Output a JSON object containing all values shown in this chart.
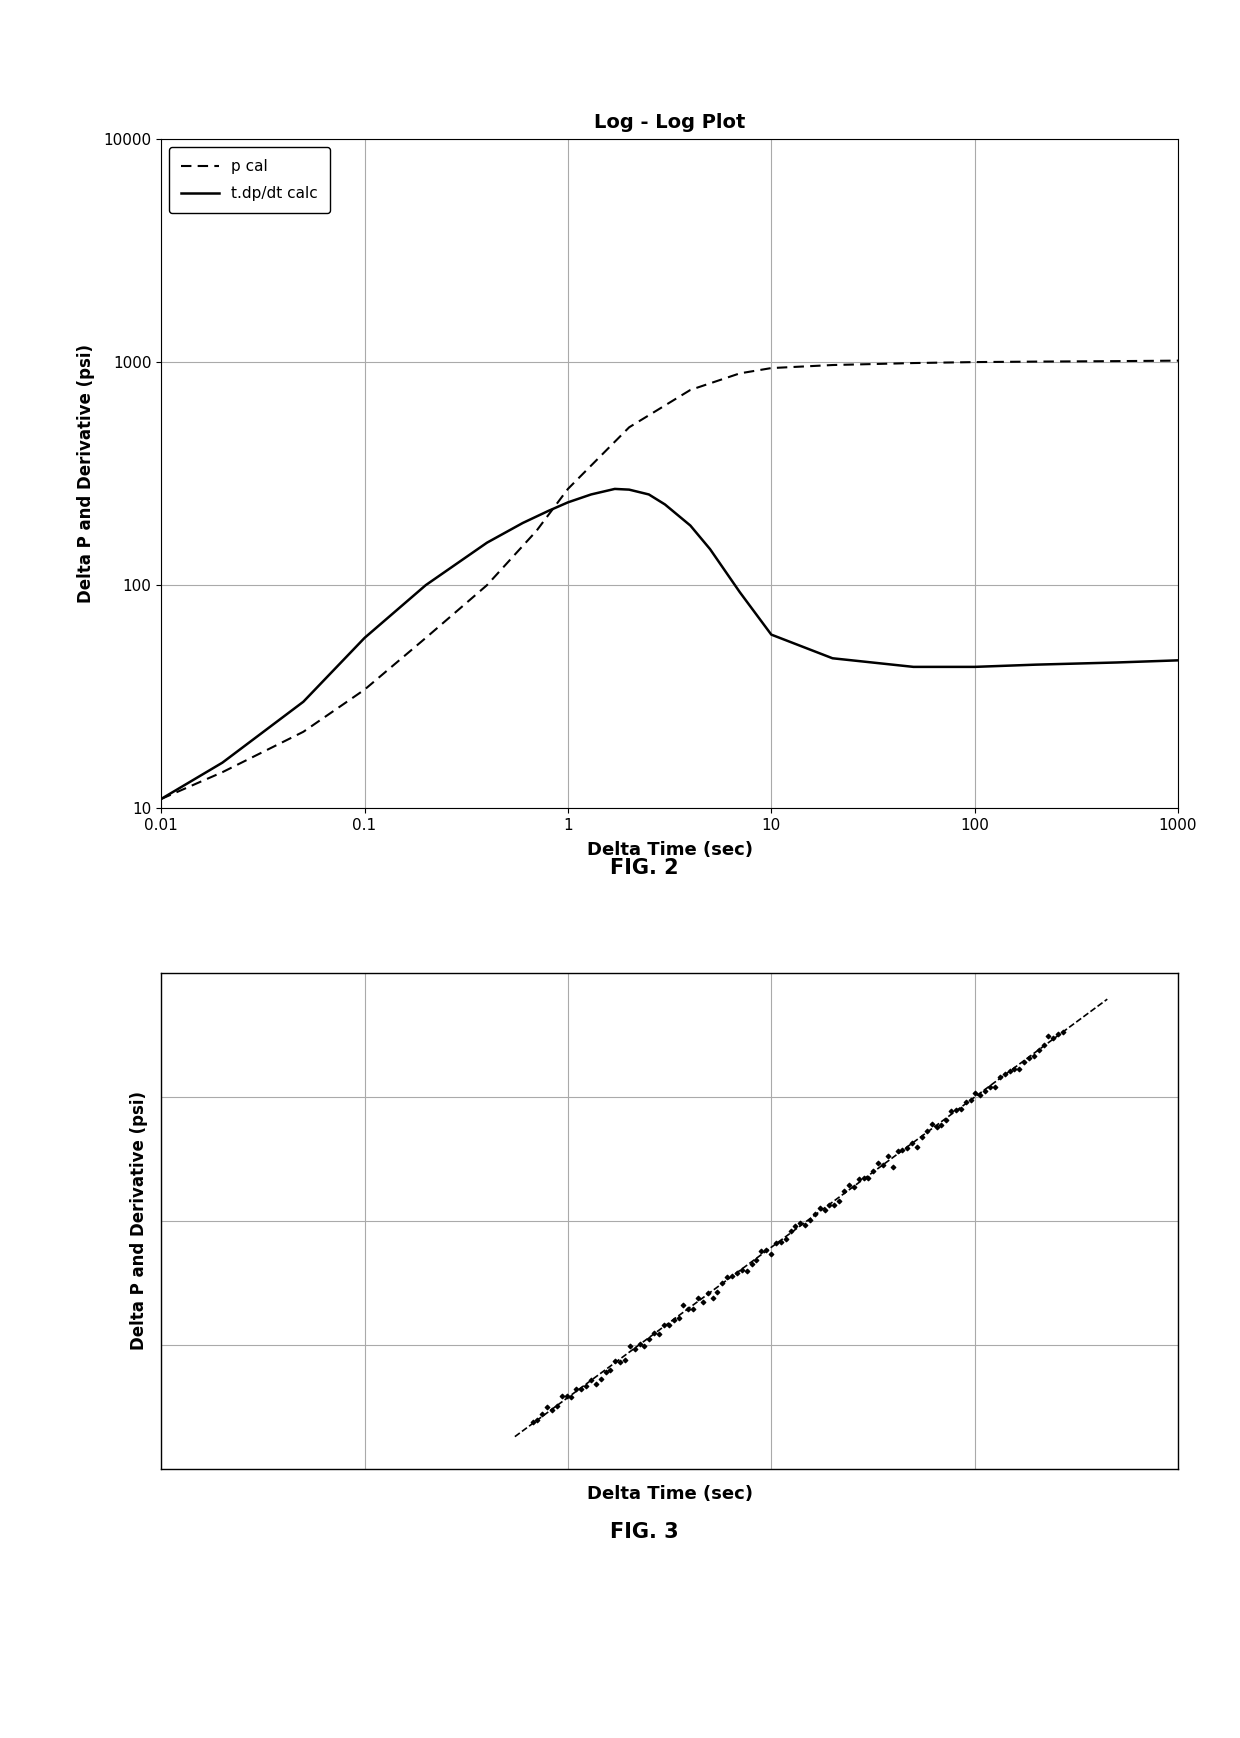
{
  "fig1": {
    "title": "Log - Log Plot",
    "xlabel": "Delta Time (sec)",
    "ylabel": "Delta P and Derivative (psi)",
    "fig_caption": "FIG. 2",
    "xlim": [
      0.01,
      1000
    ],
    "ylim": [
      10,
      10000
    ],
    "xticks": [
      0.01,
      0.1,
      1,
      10,
      100,
      1000
    ],
    "xticklabels": [
      "0.01",
      "0.1",
      "1",
      "10",
      "100",
      "1000"
    ],
    "yticks": [
      10,
      100,
      1000,
      10000
    ],
    "yticklabels": [
      "10",
      "100",
      "1000",
      "10000"
    ],
    "legend": [
      "p cal",
      "t.dp/dt calc"
    ],
    "pcal_x": [
      0.01,
      0.02,
      0.05,
      0.1,
      0.2,
      0.4,
      0.7,
      1.0,
      2.0,
      4.0,
      7.0,
      10.0,
      20.0,
      50.0,
      100.0,
      200.0,
      500.0,
      1000.0
    ],
    "pcal_y": [
      11.0,
      14.5,
      22.0,
      34.0,
      58.0,
      100.0,
      175.0,
      270.0,
      510.0,
      750.0,
      890.0,
      940.0,
      970.0,
      990.0,
      1000.0,
      1005.0,
      1010.0,
      1015.0
    ],
    "deriv_x": [
      0.01,
      0.02,
      0.05,
      0.1,
      0.2,
      0.4,
      0.6,
      0.8,
      1.0,
      1.3,
      1.7,
      2.0,
      2.5,
      3.0,
      4.0,
      5.0,
      7.0,
      10.0,
      20.0,
      50.0,
      100.0,
      200.0,
      500.0,
      1000.0
    ],
    "deriv_y": [
      11.0,
      16.0,
      30.0,
      58.0,
      100.0,
      155.0,
      190.0,
      215.0,
      235.0,
      255.0,
      270.0,
      268.0,
      255.0,
      230.0,
      185.0,
      145.0,
      93.0,
      60.0,
      47.0,
      43.0,
      43.0,
      44.0,
      45.0,
      46.0
    ],
    "pcal_color": "#000000",
    "deriv_color": "#000000",
    "grid_color": "#aaaaaa",
    "background": "#ffffff",
    "title_fontsize": 14,
    "label_fontsize": 13,
    "tick_fontsize": 11,
    "legend_fontsize": 11
  },
  "fig2": {
    "fig_caption": "FIG. 3",
    "xlabel": "Delta Time (sec)",
    "ylabel": "Delta P and Derivative (psi)",
    "background": "#ffffff",
    "grid_color": "#aaaaaa",
    "dot_color": "#000000",
    "dash_color": "#000000",
    "label_fontsize": 13,
    "n_cols": 5,
    "n_rows": 4
  }
}
